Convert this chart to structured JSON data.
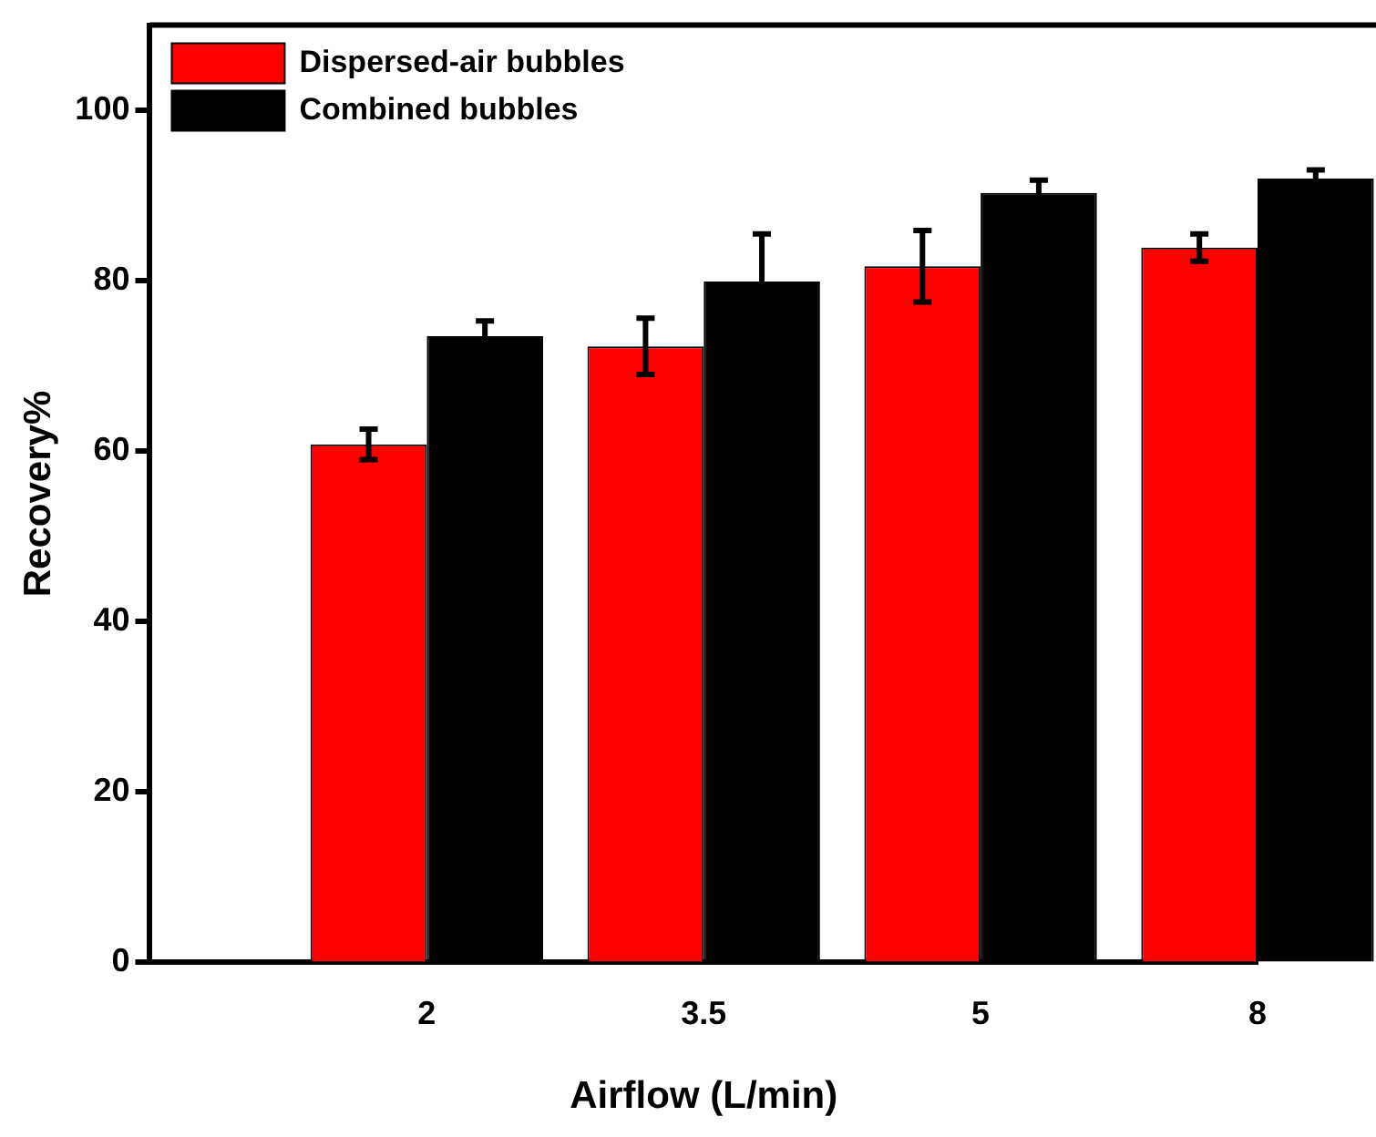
{
  "chart_data": {
    "type": "bar",
    "xlabel": "Airflow (L/min)",
    "ylabel": "Recovery%",
    "categories": [
      null,
      "2",
      "3.5",
      "5",
      "8"
    ],
    "series": [
      {
        "name": "Dispersed-air bubbles",
        "color": "#ff0000",
        "values": [
          null,
          60.8,
          72.3,
          81.7,
          83.9
        ],
        "errors": [
          null,
          1.8,
          3.3,
          4.2,
          1.6
        ]
      },
      {
        "name": "Combined bubbles",
        "color": "#000000",
        "values": [
          null,
          73.5,
          79.9,
          90.3,
          92
        ],
        "errors": [
          null,
          1.8,
          5.6,
          1.5,
          1
        ]
      }
    ],
    "ylim": [
      0,
      110
    ],
    "yticks": [
      0,
      20,
      40,
      60,
      80,
      100
    ],
    "grid": false,
    "legend": "top left"
  }
}
